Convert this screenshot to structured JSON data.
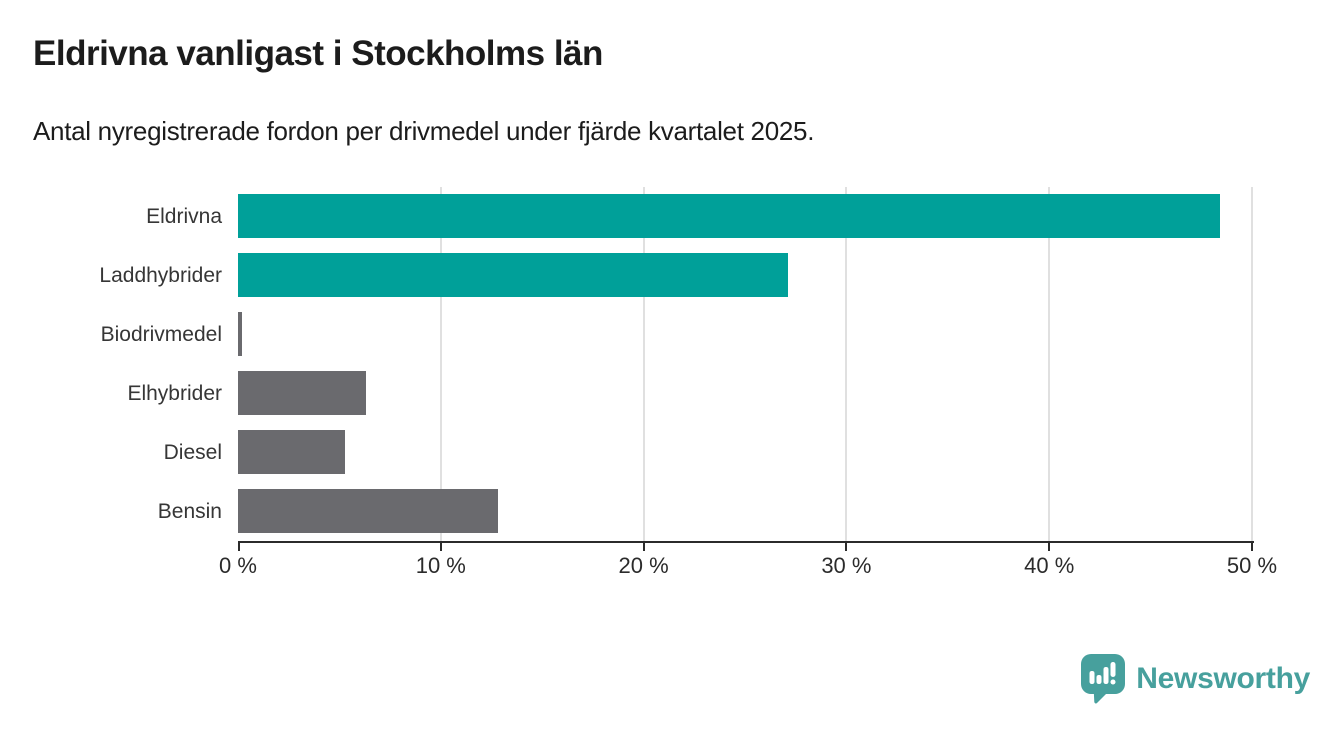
{
  "title": "Eldrivna vanligast i Stockholms län",
  "subtitle": "Antal nyregistrerade fordon per drivmedel under fjärde kvartalet 2025.",
  "chart_data": {
    "type": "bar",
    "orientation": "horizontal",
    "title": "Eldrivna vanligast i Stockholms län",
    "subtitle": "Antal nyregistrerade fordon per drivmedel under fjärde kvartalet 2025.",
    "categories": [
      "Eldrivna",
      "Laddhybrider",
      "Biodrivmedel",
      "Elhybrider",
      "Diesel",
      "Bensin"
    ],
    "values": [
      48.4,
      27.1,
      0.2,
      6.3,
      5.3,
      12.8
    ],
    "unit": "%",
    "xlabel": "",
    "ylabel": "",
    "xlim": [
      0,
      50
    ],
    "x_tick_values": [
      0,
      10,
      20,
      30,
      40,
      50
    ],
    "x_tick_labels": [
      "0 %",
      "10 %",
      "20 %",
      "30 %",
      "40 %",
      "50 %"
    ],
    "grid": "vertical-gridlines-at-ticks-except-zero",
    "legend_position": "none",
    "bar_colors": [
      "#00A099",
      "#00A099",
      "#6A6A6E",
      "#6A6A6E",
      "#6A6A6E",
      "#6A6A6E"
    ],
    "highlight_color": "#00A099",
    "default_color": "#6A6A6E",
    "gridline_color": "#E0E0E0",
    "axis_color": "#2B2B2B"
  },
  "branding": {
    "logo_text": "Newsworthy",
    "logo_color": "#47A09D",
    "logo_icon": "newsworthy-speech-bubble-chart-icon"
  }
}
